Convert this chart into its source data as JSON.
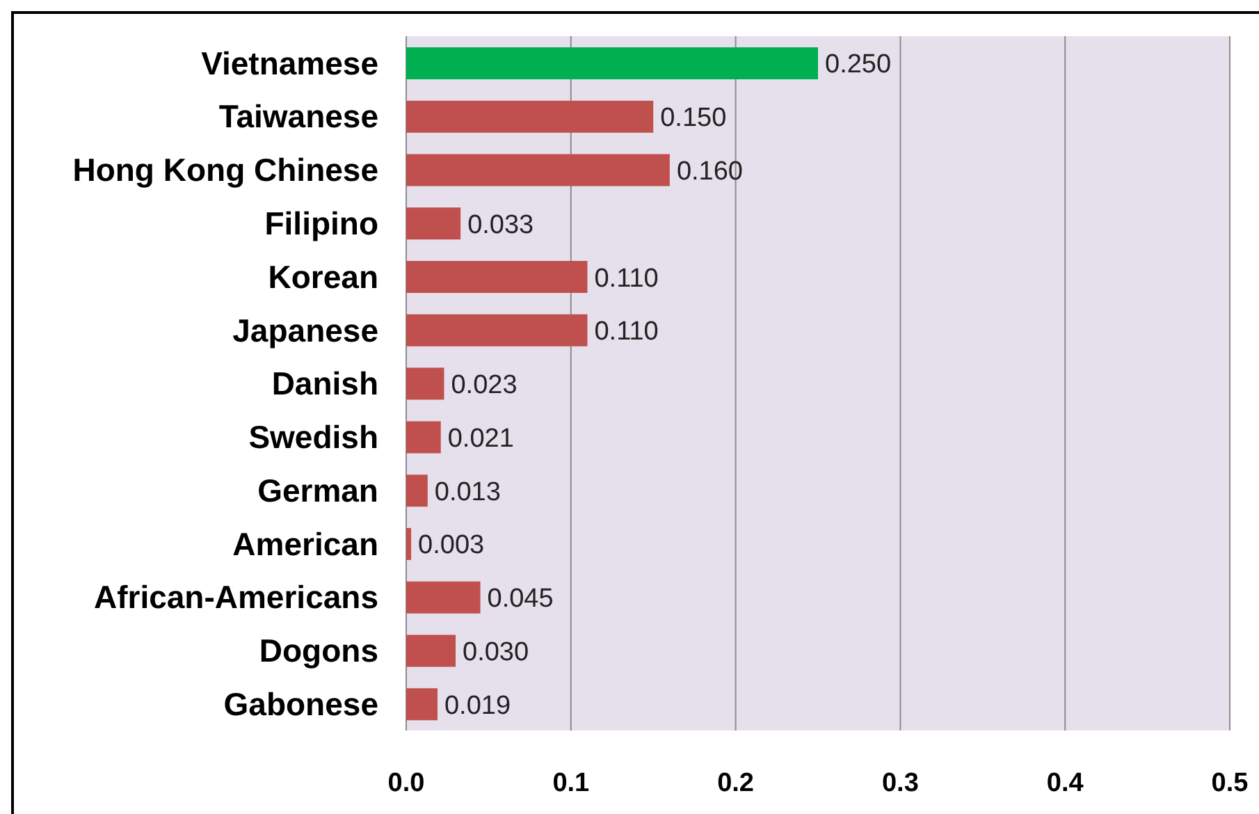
{
  "chart_data": {
    "type": "bar",
    "orientation": "horizontal",
    "categories": [
      "Vietnamese",
      "Taiwanese",
      "Hong Kong Chinese",
      "Filipino",
      "Korean",
      "Japanese",
      "Danish",
      "Swedish",
      "German",
      "American",
      "African-Americans",
      "Dogons",
      "Gabonese"
    ],
    "values": [
      0.25,
      0.15,
      0.16,
      0.033,
      0.11,
      0.11,
      0.023,
      0.021,
      0.013,
      0.003,
      0.045,
      0.03,
      0.019
    ],
    "value_labels": [
      "0.250",
      "0.150",
      "0.160",
      "0.033",
      "0.110",
      "0.110",
      "0.023",
      "0.021",
      "0.013",
      "0.003",
      "0.045",
      "0.030",
      "0.019"
    ],
    "colors": [
      "#00b050",
      "#c0504d",
      "#c0504d",
      "#c0504d",
      "#c0504d",
      "#c0504d",
      "#c0504d",
      "#c0504d",
      "#c0504d",
      "#c0504d",
      "#c0504d",
      "#c0504d",
      "#c0504d"
    ],
    "xlim": [
      0,
      0.5
    ],
    "xticks": [
      {
        "value": 0,
        "label": "0.0"
      },
      {
        "value": 0.1,
        "label": "0.1"
      },
      {
        "value": 0.2,
        "label": "0.2"
      },
      {
        "value": 0.3,
        "label": "0.3"
      },
      {
        "value": 0.4,
        "label": "0.4"
      },
      {
        "value": 0.5,
        "label": "0.5"
      }
    ],
    "grid": "x"
  }
}
